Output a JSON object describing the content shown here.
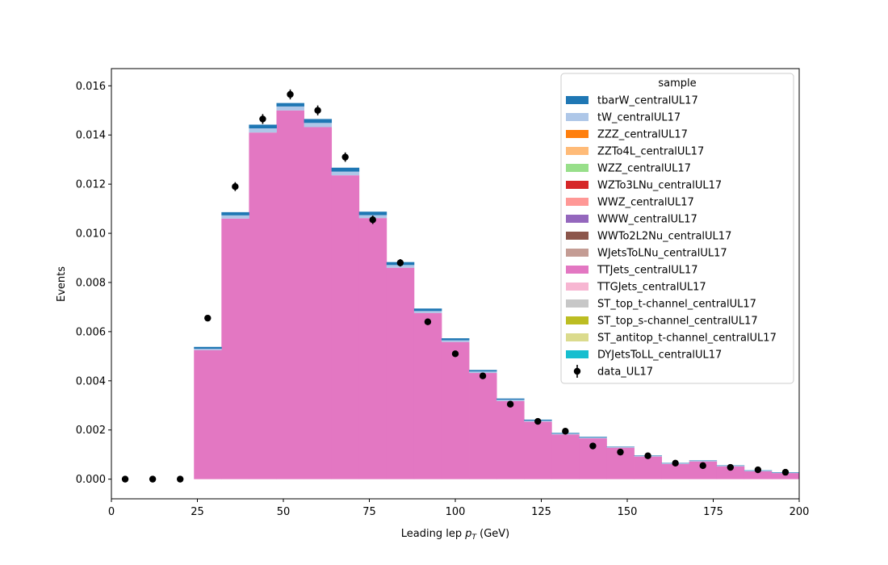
{
  "chart_data": {
    "type": "bar",
    "xlabel_main": "Leading lep ",
    "xlabel_math": "p",
    "xlabel_sub": "T",
    "xlabel_unit": " (GeV)",
    "ylabel": "Events",
    "xlim": [
      0,
      200
    ],
    "ylim": [
      -0.0008,
      0.0167
    ],
    "x_ticks": [
      0,
      25,
      50,
      75,
      100,
      125,
      150,
      175,
      200
    ],
    "y_ticks": [
      0.0,
      0.002,
      0.004,
      0.006,
      0.008,
      0.01,
      0.012,
      0.014,
      0.016
    ],
    "y_tick_labels": [
      "0.000",
      "0.002",
      "0.004",
      "0.006",
      "0.008",
      "0.010",
      "0.012",
      "0.014",
      "0.016"
    ],
    "legend": {
      "title": "sample",
      "position": "upper right"
    },
    "bin_edges": [
      24,
      32,
      40,
      48,
      56,
      64,
      72,
      80,
      88,
      96,
      104,
      112,
      120,
      128,
      136,
      144,
      152,
      160,
      168,
      176,
      184,
      192,
      200
    ],
    "stack_series": [
      {
        "name": "TTJets_centralUL17",
        "color": "#e377c2",
        "values": [
          0.00525,
          0.0106,
          0.0141,
          0.015,
          0.01432,
          0.01236,
          0.01062,
          0.0086,
          0.00676,
          0.00558,
          0.00432,
          0.00318,
          0.00234,
          0.00182,
          0.00166,
          0.00128,
          0.00092,
          0.00062,
          0.00072,
          0.00052,
          0.00032,
          0.00025
        ]
      },
      {
        "name": "tW_centralUL17",
        "color": "#aec7e8",
        "values": [
          5e-05,
          0.00013,
          0.00017,
          0.00016,
          0.00017,
          0.00015,
          0.00012,
          0.00011,
          8e-05,
          7e-05,
          6e-05,
          5e-05,
          4e-05,
          3e-05,
          3e-05,
          2e-05,
          2e-05,
          2e-05,
          2e-05,
          2e-05,
          2e-05,
          1e-05
        ]
      },
      {
        "name": "tbarW_centralUL17",
        "color": "#1f77b4",
        "values": [
          8e-05,
          0.00013,
          0.00015,
          0.00014,
          0.00016,
          0.00016,
          0.00014,
          0.00012,
          0.0001,
          8e-05,
          6e-05,
          5e-05,
          4e-05,
          3e-05,
          3e-05,
          2e-05,
          2e-05,
          2e-05,
          2e-05,
          2e-05,
          2e-05,
          2e-05
        ]
      }
    ],
    "data_series": {
      "name": "data_UL17",
      "color": "#000000",
      "x": [
        4,
        12,
        20,
        28,
        36,
        44,
        52,
        60,
        68,
        76,
        84,
        92,
        100,
        108,
        116,
        124,
        132,
        140,
        148,
        156,
        164,
        172,
        180,
        188,
        196
      ],
      "y": [
        0.0,
        0.0,
        0.0,
        0.00655,
        0.0119,
        0.01465,
        0.01565,
        0.015,
        0.0131,
        0.01055,
        0.0088,
        0.0064,
        0.0051,
        0.0042,
        0.00305,
        0.00235,
        0.00195,
        0.00135,
        0.0011,
        0.00095,
        0.00065,
        0.00055,
        0.00048,
        0.00038,
        0.00028
      ],
      "yerr": [
        0.0,
        0.0,
        0.0,
        0.00012,
        0.00018,
        0.0002,
        0.0002,
        0.0002,
        0.00019,
        0.00017,
        0.00015,
        0.00013,
        0.00012,
        0.00011,
        0.0001,
        8e-05,
        7e-05,
        6e-05,
        6e-05,
        5e-05,
        4e-05,
        4e-05,
        4e-05,
        3e-05,
        3e-05
      ]
    },
    "legend_entries": [
      {
        "label": "tbarW_centralUL17",
        "color": "#1f77b4",
        "kind": "patch"
      },
      {
        "label": "tW_centralUL17",
        "color": "#aec7e8",
        "kind": "patch"
      },
      {
        "label": "ZZZ_centralUL17",
        "color": "#ff7f0e",
        "kind": "patch"
      },
      {
        "label": "ZZTo4L_centralUL17",
        "color": "#ffbb78",
        "kind": "patch"
      },
      {
        "label": "WZZ_centralUL17",
        "color": "#98df8a",
        "kind": "patch"
      },
      {
        "label": "WZTo3LNu_centralUL17",
        "color": "#d62728",
        "kind": "patch"
      },
      {
        "label": "WWZ_centralUL17",
        "color": "#ff9896",
        "kind": "patch"
      },
      {
        "label": "WWW_centralUL17",
        "color": "#9467bd",
        "kind": "patch"
      },
      {
        "label": "WWTo2L2Nu_centralUL17",
        "color": "#8c564b",
        "kind": "patch"
      },
      {
        "label": "WJetsToLNu_centralUL17",
        "color": "#c49c94",
        "kind": "patch"
      },
      {
        "label": "TTJets_centralUL17",
        "color": "#e377c2",
        "kind": "patch"
      },
      {
        "label": "TTGJets_centralUL17",
        "color": "#f7b6d2",
        "kind": "patch"
      },
      {
        "label": "ST_top_t-channel_centralUL17",
        "color": "#c7c7c7",
        "kind": "patch"
      },
      {
        "label": "ST_top_s-channel_centralUL17",
        "color": "#bcbd22",
        "kind": "patch"
      },
      {
        "label": "ST_antitop_t-channel_centralUL17",
        "color": "#dbdb8d",
        "kind": "patch"
      },
      {
        "label": "DYJetsToLL_centralUL17",
        "color": "#17becf",
        "kind": "patch"
      },
      {
        "label": "data_UL17",
        "color": "#000000",
        "kind": "errorbar"
      }
    ]
  }
}
